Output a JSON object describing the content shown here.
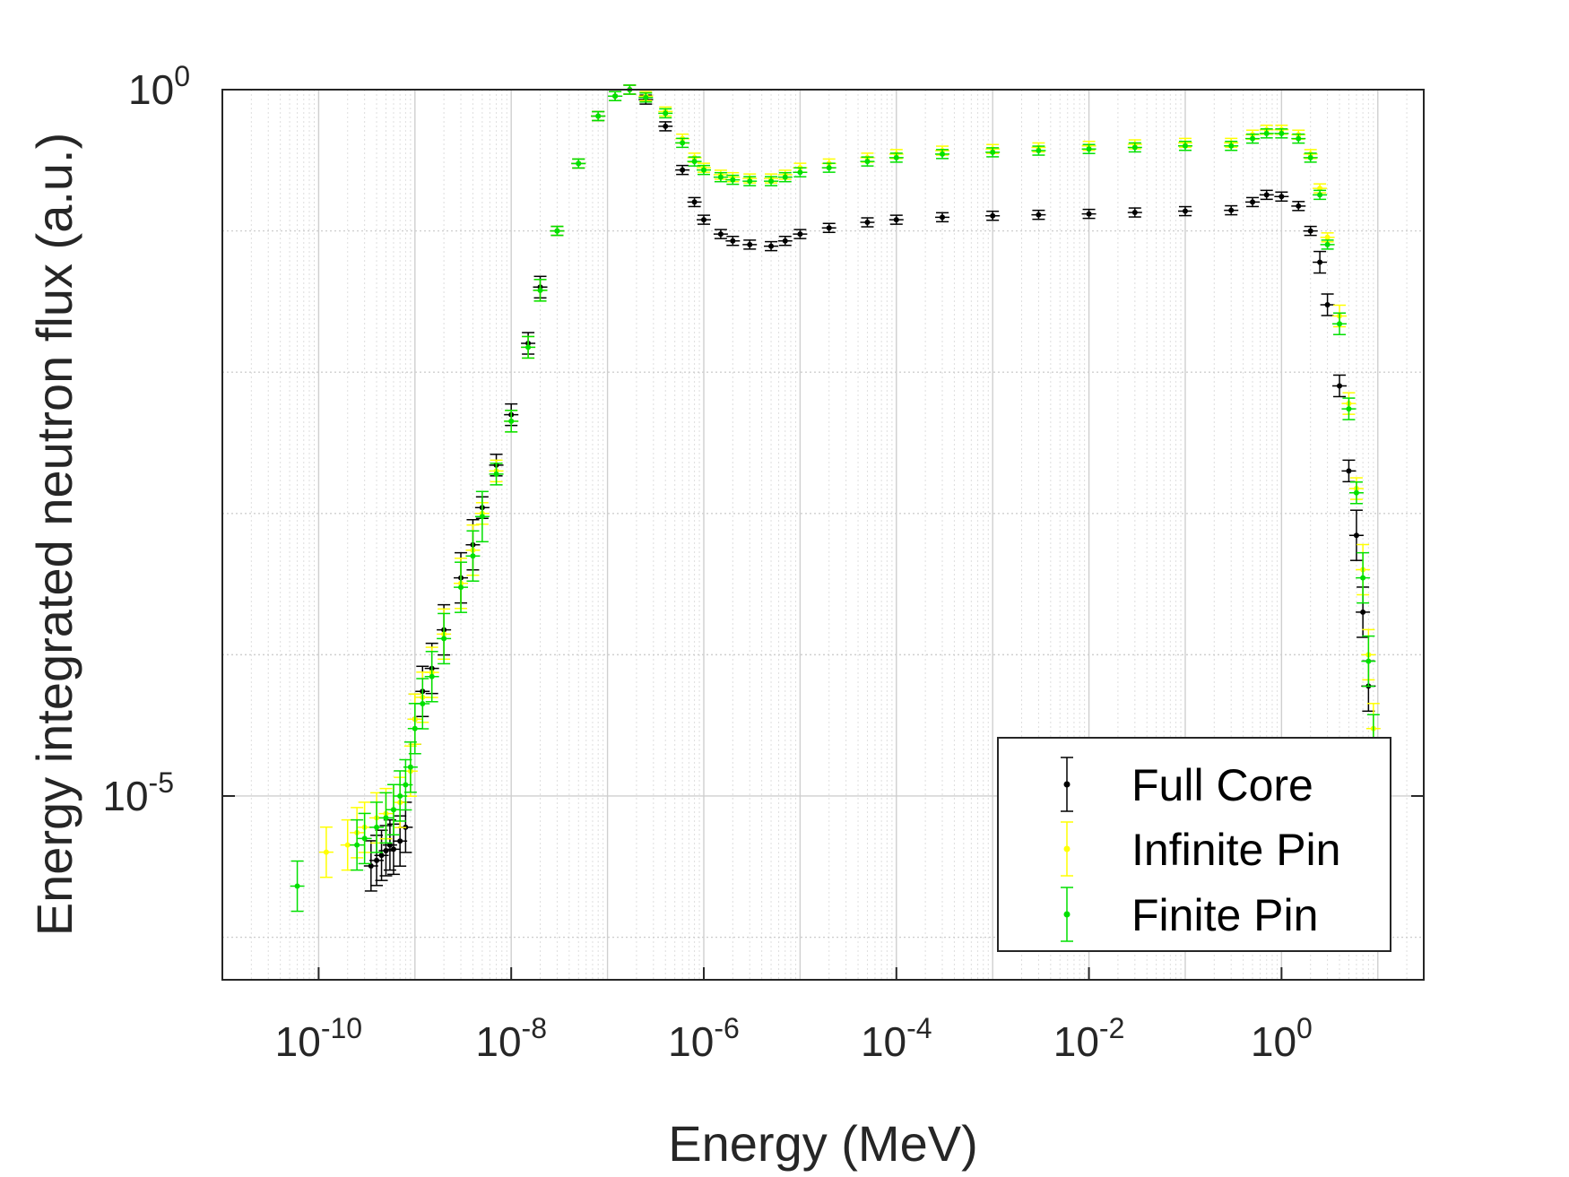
{
  "chart_data": {
    "type": "scatter",
    "title": "",
    "xlabel": "Energy (MeV)",
    "ylabel": "Energy integrated neutron flux (a.u.)",
    "xscale": "log",
    "yscale": "log",
    "xlim": [
      1e-11,
      30
    ],
    "ylim": [
      5e-07,
      1
    ],
    "grid": true,
    "minor_grid": true,
    "error_bars": true,
    "legend_position": "bottom-right",
    "x_ticks": [
      {
        "base": "10",
        "exp": "-10",
        "value": 1e-10
      },
      {
        "base": "10",
        "exp": "-8",
        "value": 1e-08
      },
      {
        "base": "10",
        "exp": "-6",
        "value": 1e-06
      },
      {
        "base": "10",
        "exp": "-4",
        "value": 0.0001
      },
      {
        "base": "10",
        "exp": "-2",
        "value": 0.01
      },
      {
        "base": "10",
        "exp": "0",
        "value": 1
      }
    ],
    "y_ticks": [
      {
        "base": "10",
        "exp": "-5",
        "value": 1e-05
      },
      {
        "base": "10",
        "exp": "0",
        "value": 1
      }
    ],
    "series": [
      {
        "name": "Full Core",
        "color": "#000000",
        "points": [
          [
            3.5e-10,
            3.2e-06
          ],
          [
            4e-10,
            3.5e-06
          ],
          [
            4.5e-10,
            3.8e-06
          ],
          [
            5e-10,
            4.1e-06
          ],
          [
            5.5e-10,
            4.5e-06
          ],
          [
            6e-10,
            4.2e-06
          ],
          [
            7e-10,
            4.8e-06
          ],
          [
            8e-10,
            6e-06
          ],
          [
            1e-09,
            3.5e-05
          ],
          [
            1.2e-09,
            5.5e-05
          ],
          [
            1.5e-09,
            8e-05
          ],
          [
            2e-09,
            0.00015
          ],
          [
            3e-09,
            0.00035
          ],
          [
            4e-09,
            0.0006
          ],
          [
            5e-09,
            0.0011
          ],
          [
            7e-09,
            0.0022
          ],
          [
            1e-08,
            0.005
          ],
          [
            1.5e-08,
            0.016
          ],
          [
            2e-08,
            0.04
          ],
          [
            3e-08,
            0.1
          ],
          [
            5e-08,
            0.3
          ],
          [
            8e-08,
            0.65
          ],
          [
            1.2e-07,
            0.9
          ],
          [
            1.7e-07,
            1.0
          ],
          [
            2.5e-07,
            0.85
          ],
          [
            4e-07,
            0.55
          ],
          [
            6e-07,
            0.27
          ],
          [
            8e-07,
            0.16
          ],
          [
            1e-06,
            0.12
          ],
          [
            1.5e-06,
            0.095
          ],
          [
            2e-06,
            0.085
          ],
          [
            3e-06,
            0.08
          ],
          [
            5e-06,
            0.078
          ],
          [
            7e-06,
            0.085
          ],
          [
            1e-05,
            0.095
          ],
          [
            2e-05,
            0.105
          ],
          [
            5e-05,
            0.115
          ],
          [
            0.0001,
            0.12
          ],
          [
            0.0003,
            0.125
          ],
          [
            0.001,
            0.128
          ],
          [
            0.003,
            0.13
          ],
          [
            0.01,
            0.132
          ],
          [
            0.03,
            0.135
          ],
          [
            0.1,
            0.138
          ],
          [
            0.3,
            0.14
          ],
          [
            0.5,
            0.16
          ],
          [
            0.7,
            0.18
          ],
          [
            1.0,
            0.175
          ],
          [
            1.5,
            0.15
          ],
          [
            2.0,
            0.1
          ],
          [
            2.5,
            0.06
          ],
          [
            3.0,
            0.03
          ],
          [
            4.0,
            0.008
          ],
          [
            5.0,
            0.002
          ],
          [
            6.0,
            0.0007
          ],
          [
            7.0,
            0.0002
          ],
          [
            8.0,
            6e-05
          ],
          [
            9.0,
            1.5e-05
          ],
          [
            10.0,
            5e-06
          ],
          [
            11.0,
            1.5e-06
          ]
        ]
      },
      {
        "name": "Infinite Pin",
        "color": "#ffff00",
        "points": [
          [
            1.2e-10,
            4e-06
          ],
          [
            2e-10,
            4.5e-06
          ],
          [
            2.5e-10,
            5.5e-06
          ],
          [
            3e-10,
            6e-06
          ],
          [
            4e-10,
            7e-06
          ],
          [
            5e-10,
            7.5e-06
          ],
          [
            6e-10,
            8e-06
          ],
          [
            7e-10,
            9e-06
          ],
          [
            9e-10,
            1.5e-05
          ],
          [
            1e-09,
            3.5e-05
          ],
          [
            1.2e-09,
            5e-05
          ],
          [
            1.5e-09,
            7.5e-05
          ],
          [
            2e-09,
            0.00014
          ],
          [
            3e-09,
            0.00032
          ],
          [
            4e-09,
            0.00055
          ],
          [
            5e-09,
            0.001
          ],
          [
            7e-09,
            0.002
          ],
          [
            1e-08,
            0.0045
          ],
          [
            1.5e-08,
            0.015
          ],
          [
            2e-08,
            0.038
          ],
          [
            3e-08,
            0.1
          ],
          [
            5e-08,
            0.3
          ],
          [
            8e-08,
            0.65
          ],
          [
            1.2e-07,
            0.9
          ],
          [
            1.7e-07,
            1.0
          ],
          [
            2.5e-07,
            0.9
          ],
          [
            4e-07,
            0.7
          ],
          [
            6e-07,
            0.45
          ],
          [
            8e-07,
            0.33
          ],
          [
            1e-06,
            0.28
          ],
          [
            1.5e-06,
            0.25
          ],
          [
            2e-06,
            0.24
          ],
          [
            3e-06,
            0.235
          ],
          [
            5e-06,
            0.235
          ],
          [
            7e-06,
            0.25
          ],
          [
            1e-05,
            0.28
          ],
          [
            2e-05,
            0.3
          ],
          [
            5e-05,
            0.33
          ],
          [
            0.0001,
            0.35
          ],
          [
            0.0003,
            0.37
          ],
          [
            0.001,
            0.38
          ],
          [
            0.003,
            0.39
          ],
          [
            0.01,
            0.4
          ],
          [
            0.03,
            0.41
          ],
          [
            0.1,
            0.42
          ],
          [
            0.3,
            0.42
          ],
          [
            0.5,
            0.48
          ],
          [
            0.7,
            0.52
          ],
          [
            1.0,
            0.52
          ],
          [
            1.5,
            0.48
          ],
          [
            2.0,
            0.35
          ],
          [
            2.5,
            0.2
          ],
          [
            3.0,
            0.09
          ],
          [
            4.0,
            0.025
          ],
          [
            5.0,
            0.006
          ],
          [
            6.0,
            0.0015
          ],
          [
            7.0,
            0.0004
          ],
          [
            8.0,
            0.0001
          ],
          [
            9.0,
            3e-05
          ],
          [
            10.0,
            8e-06
          ],
          [
            11.0,
            3e-06
          ]
        ]
      },
      {
        "name": "Finite Pin",
        "color": "#00e000",
        "points": [
          [
            6e-11,
            2.3e-06
          ],
          [
            2.5e-10,
            4.5e-06
          ],
          [
            3e-10,
            5e-06
          ],
          [
            4e-10,
            6e-06
          ],
          [
            5e-10,
            7e-06
          ],
          [
            6e-10,
            8e-06
          ],
          [
            7e-10,
            1e-05
          ],
          [
            8e-10,
            1.2e-05
          ],
          [
            9e-10,
            1.6e-05
          ],
          [
            1e-09,
            3e-05
          ],
          [
            1.2e-09,
            4.5e-05
          ],
          [
            1.5e-09,
            7e-05
          ],
          [
            2e-09,
            0.00013
          ],
          [
            3e-09,
            0.0003
          ],
          [
            4e-09,
            0.0005
          ],
          [
            5e-09,
            0.00095
          ],
          [
            7e-09,
            0.0019
          ],
          [
            1e-08,
            0.0045
          ],
          [
            1.5e-08,
            0.015
          ],
          [
            2e-08,
            0.038
          ],
          [
            3e-08,
            0.1
          ],
          [
            5e-08,
            0.3
          ],
          [
            8e-08,
            0.65
          ],
          [
            1.2e-07,
            0.9
          ],
          [
            1.7e-07,
            1.0
          ],
          [
            2.5e-07,
            0.88
          ],
          [
            4e-07,
            0.68
          ],
          [
            6e-07,
            0.42
          ],
          [
            8e-07,
            0.31
          ],
          [
            1e-06,
            0.27
          ],
          [
            1.5e-06,
            0.24
          ],
          [
            2e-06,
            0.23
          ],
          [
            3e-06,
            0.225
          ],
          [
            5e-06,
            0.225
          ],
          [
            7e-06,
            0.24
          ],
          [
            1e-05,
            0.26
          ],
          [
            2e-05,
            0.28
          ],
          [
            5e-05,
            0.31
          ],
          [
            0.0001,
            0.33
          ],
          [
            0.0003,
            0.35
          ],
          [
            0.001,
            0.36
          ],
          [
            0.003,
            0.37
          ],
          [
            0.01,
            0.38
          ],
          [
            0.03,
            0.39
          ],
          [
            0.1,
            0.4
          ],
          [
            0.3,
            0.4
          ],
          [
            0.5,
            0.45
          ],
          [
            0.7,
            0.49
          ],
          [
            1.0,
            0.49
          ],
          [
            1.5,
            0.45
          ],
          [
            2.0,
            0.33
          ],
          [
            2.5,
            0.18
          ],
          [
            3.0,
            0.08
          ],
          [
            4.0,
            0.022
          ],
          [
            5.0,
            0.0055
          ],
          [
            6.0,
            0.0014
          ],
          [
            7.0,
            0.00035
          ],
          [
            8.0,
            9e-05
          ],
          [
            9.0,
            2.5e-05
          ],
          [
            10.0,
            7e-06
          ],
          [
            11.0,
            2.5e-06
          ]
        ]
      }
    ]
  }
}
